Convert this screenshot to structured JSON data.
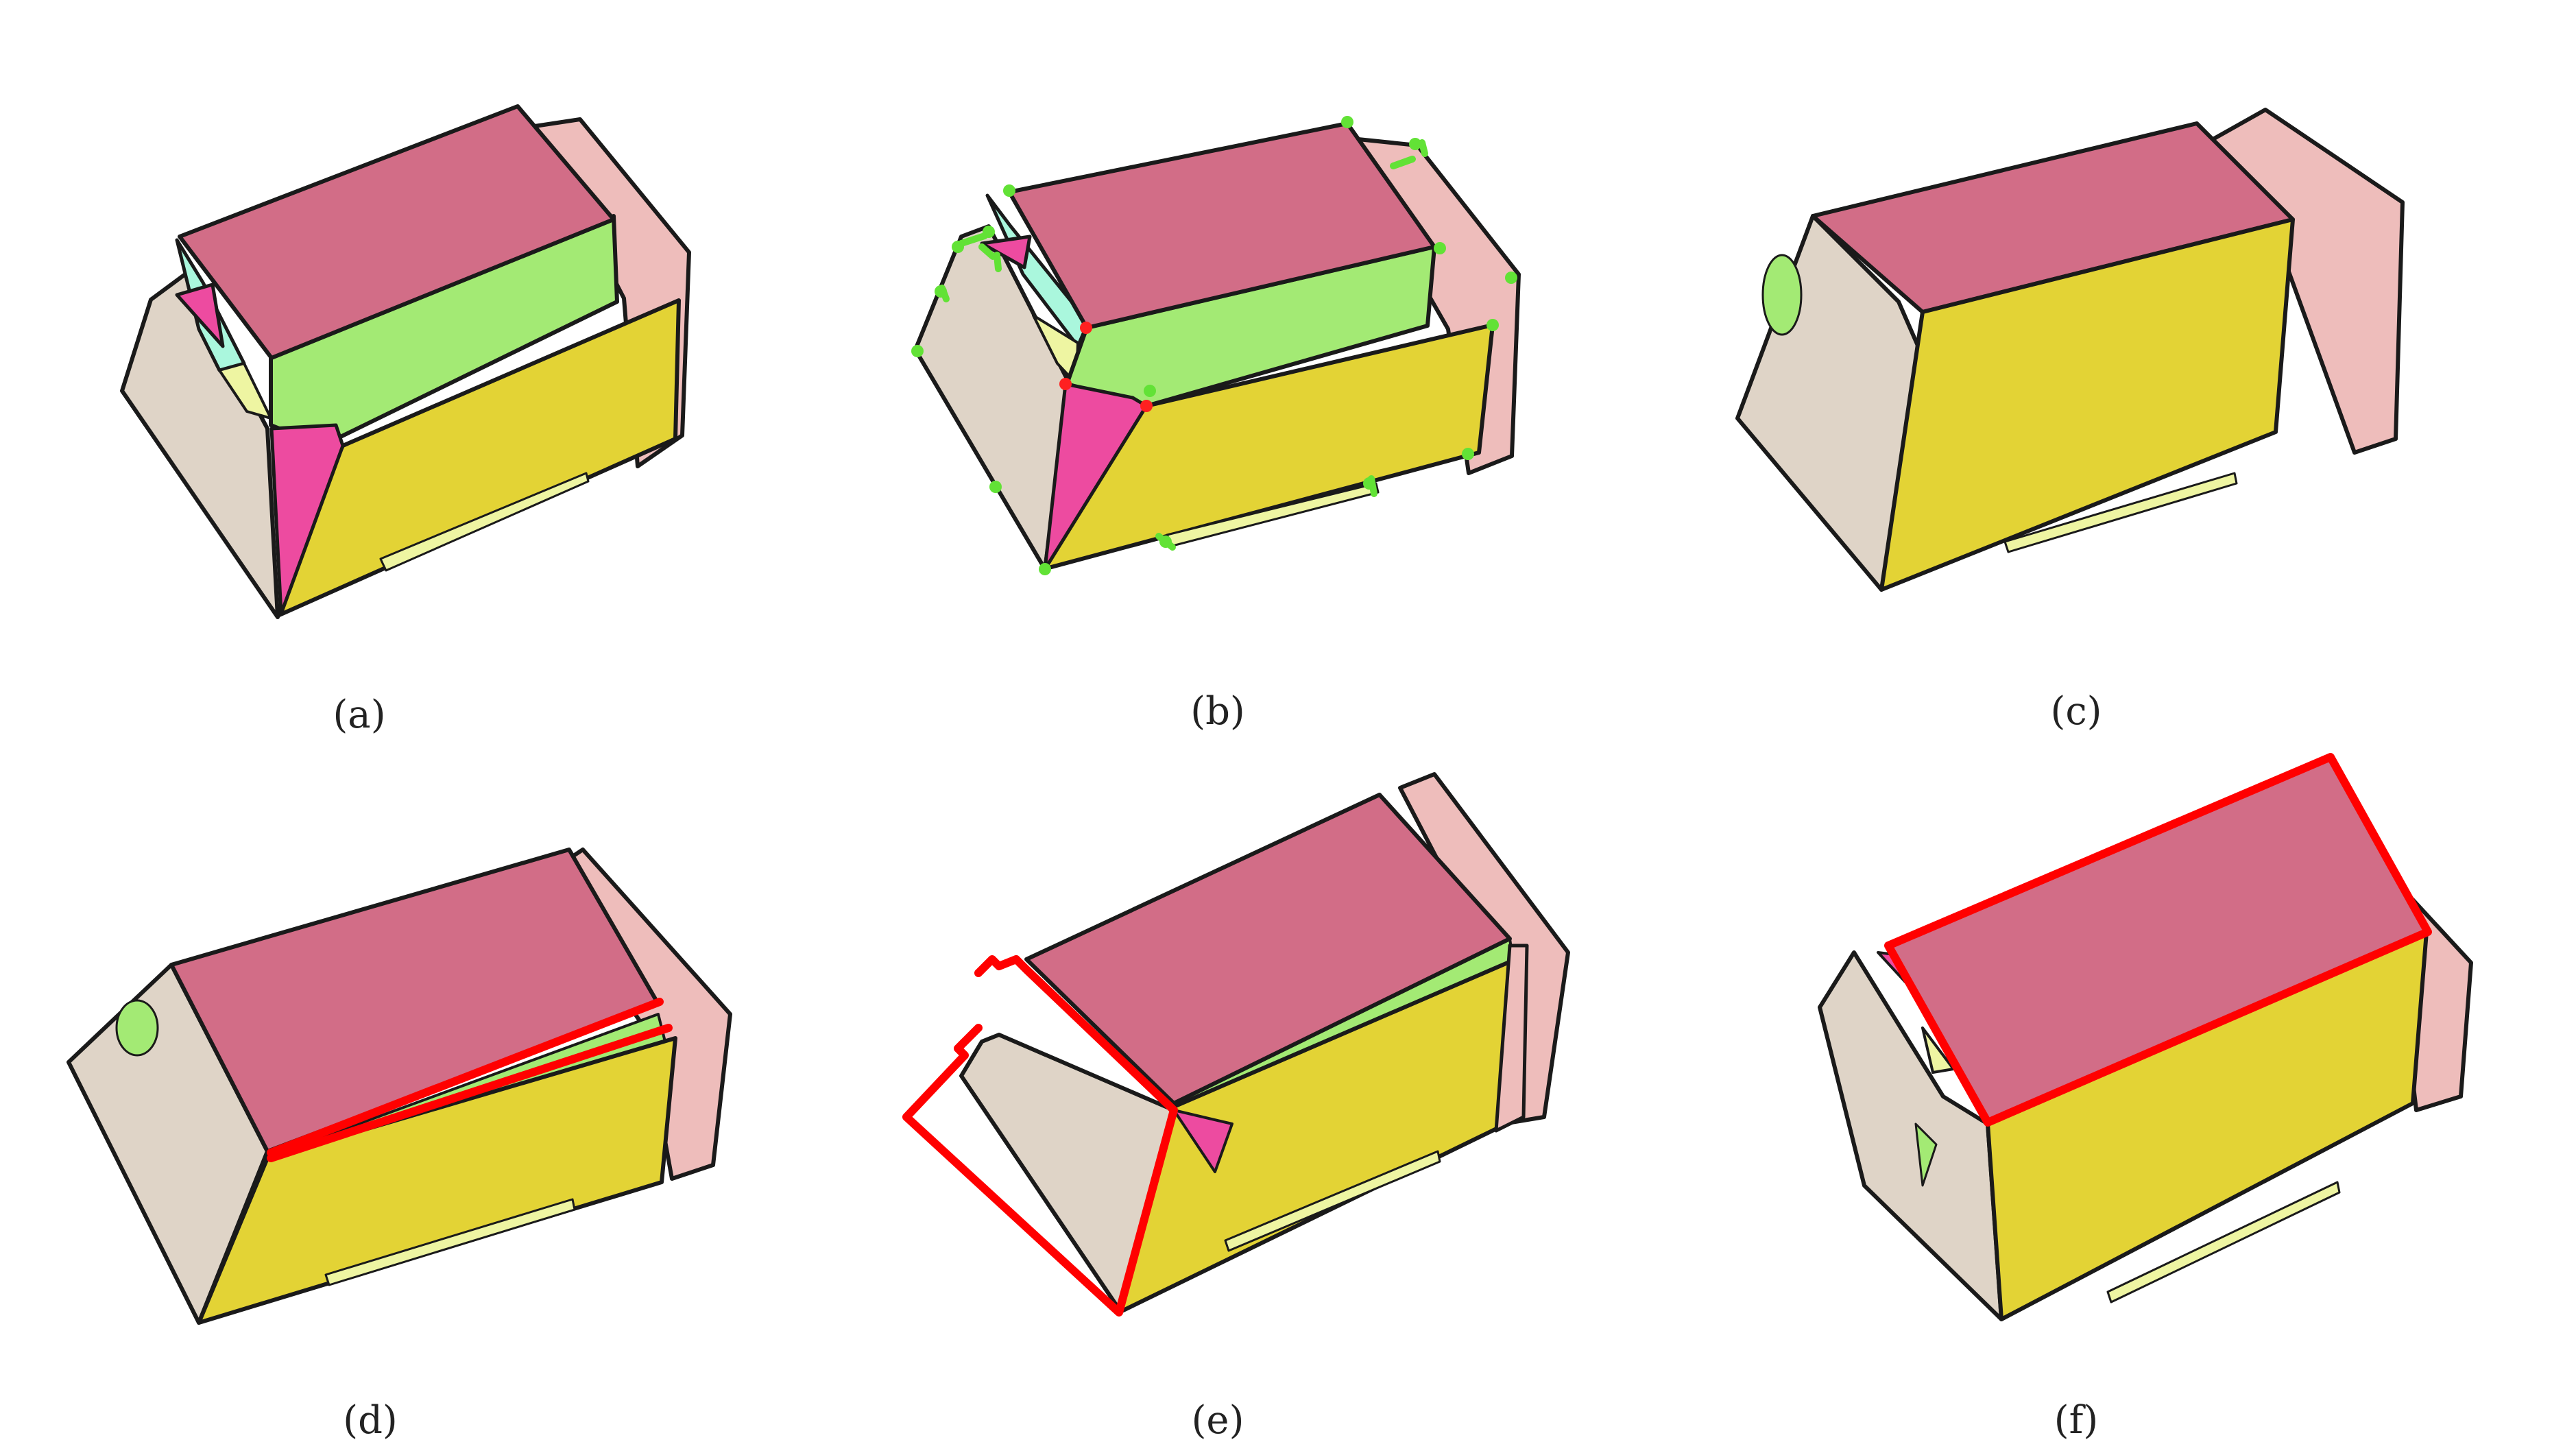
{
  "colors": {
    "top": "#d26d87",
    "side": "#e3d335",
    "end": "#dfd4c7",
    "back": "#eebdbb",
    "green": "#a3ea74",
    "magenta": "#ed4ba0",
    "cyan": "#aaf7dd",
    "lightyellow": "#eef5a2",
    "outline": "#1a1a1a",
    "highlight": "#ff0000",
    "point": "#62e236",
    "point_red": "#ff2020"
  },
  "panels": [
    {
      "label": "(a)"
    },
    {
      "label": "(b)"
    },
    {
      "label": "(c)"
    },
    {
      "label": "(d)"
    },
    {
      "label": "(e)"
    },
    {
      "label": "(f)"
    }
  ]
}
